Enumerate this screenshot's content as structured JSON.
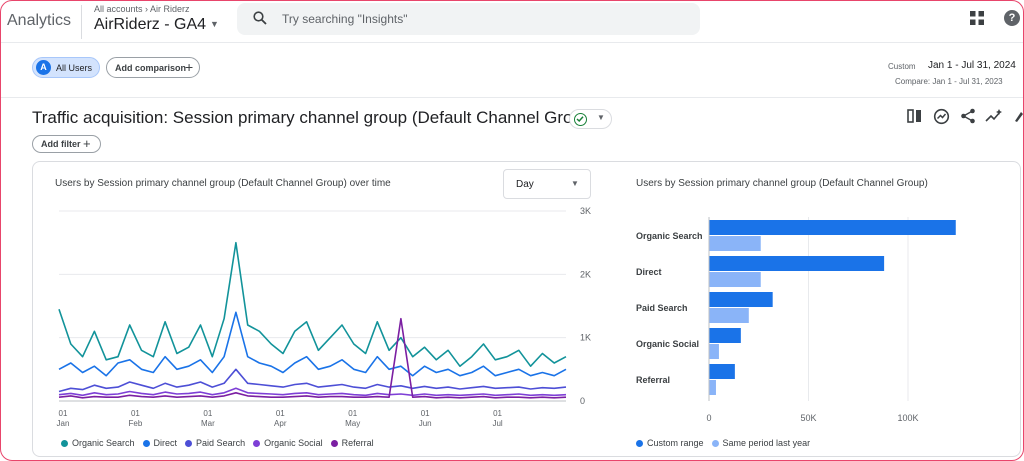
{
  "header": {
    "app_name": "Analytics",
    "breadcrumb": "All accounts › Air Riderz",
    "property": "AirRiderz - GA4",
    "search_placeholder": "Try searching \"Insights\""
  },
  "comparisons": {
    "all_users_avatar": "A",
    "all_users_label": "All Users",
    "add_comparison_label": "Add comparison"
  },
  "date": {
    "custom_label": "Custom",
    "range": "Jan 1 - Jul 31, 2024",
    "compare": "Compare: Jan 1 - Jul 31, 2023"
  },
  "report": {
    "title": "Traffic acquisition: Session primary channel group (Default Channel Group)",
    "add_filter_label": "Add filter",
    "toolbar_icons": [
      "compare-columns-icon",
      "insights-icon",
      "share-icon",
      "trend-icon",
      "edit-icon"
    ]
  },
  "line_card": {
    "title": "Users by Session primary channel group (Default Channel Group) over time",
    "granularity": "Day"
  },
  "bar_card": {
    "title": "Users by Session primary channel group (Default Channel Group)"
  },
  "colors": {
    "organic_search": "#12939a",
    "direct": "#1a73e8",
    "paid_search": "#4d4fd6",
    "organic_social": "#7e3fd6",
    "referral": "#7b1fa2",
    "custom_range": "#1a73e8",
    "last_year": "#8ab4f8"
  },
  "chart_data": [
    {
      "type": "line",
      "x_tick_labels": [
        {
          "day": "01",
          "month": "Jan"
        },
        {
          "day": "01",
          "month": "Feb"
        },
        {
          "day": "01",
          "month": "Mar"
        },
        {
          "day": "01",
          "month": "Apr"
        },
        {
          "day": "01",
          "month": "May"
        },
        {
          "day": "01",
          "month": "Jun"
        },
        {
          "day": "01",
          "month": "Jul"
        }
      ],
      "y_ticks": [
        "3K",
        "2K",
        "1K",
        "0"
      ],
      "ylim": [
        0,
        3000
      ],
      "grid": true,
      "legend_position": "bottom",
      "series": [
        {
          "name": "Organic Search",
          "values": [
            1450,
            900,
            700,
            1100,
            650,
            700,
            1200,
            800,
            700,
            1250,
            750,
            850,
            1200,
            700,
            1300,
            2500,
            1200,
            1100,
            900,
            750,
            1100,
            1250,
            800,
            1000,
            1200,
            900,
            750,
            1250,
            800,
            1000,
            700,
            850,
            650,
            800,
            550,
            700,
            900,
            650,
            700,
            800,
            550,
            750,
            600,
            700
          ]
        },
        {
          "name": "Direct",
          "values": [
            500,
            600,
            450,
            550,
            400,
            600,
            650,
            500,
            450,
            700,
            500,
            550,
            650,
            450,
            700,
            1400,
            700,
            600,
            550,
            450,
            600,
            700,
            500,
            550,
            650,
            500,
            450,
            700,
            500,
            550,
            400,
            550,
            450,
            500,
            400,
            450,
            550,
            400,
            450,
            500,
            400,
            450,
            400,
            500
          ]
        },
        {
          "name": "Paid Search",
          "values": [
            150,
            200,
            180,
            250,
            200,
            220,
            300,
            250,
            200,
            280,
            220,
            250,
            300,
            220,
            280,
            500,
            280,
            260,
            240,
            220,
            260,
            280,
            220,
            240,
            260,
            220,
            200,
            260,
            220,
            240,
            200,
            230,
            200,
            220,
            190,
            210,
            230,
            200,
            210,
            220,
            190,
            210,
            200,
            220
          ]
        },
        {
          "name": "Organic Social",
          "values": [
            100,
            120,
            90,
            130,
            100,
            110,
            150,
            120,
            100,
            140,
            110,
            120,
            140,
            100,
            130,
            200,
            130,
            120,
            110,
            100,
            120,
            130,
            100,
            110,
            120,
            100,
            90,
            120,
            100,
            110,
            90,
            110,
            90,
            100,
            90,
            100,
            110,
            90,
            100,
            110,
            90,
            100,
            90,
            100
          ]
        },
        {
          "name": "Referral",
          "values": [
            60,
            80,
            50,
            70,
            60,
            60,
            90,
            70,
            60,
            80,
            60,
            70,
            80,
            60,
            80,
            130,
            80,
            70,
            60,
            60,
            70,
            80,
            60,
            70,
            70,
            60,
            60,
            70,
            60,
            1300,
            60,
            70,
            50,
            60,
            50,
            60,
            70,
            50,
            60,
            60,
            50,
            60,
            50,
            60
          ]
        }
      ]
    },
    {
      "type": "bar",
      "orientation": "horizontal",
      "categories": [
        "Organic Search",
        "Direct",
        "Paid Search",
        "Organic Social",
        "Referral"
      ],
      "x_ticks": [
        "0",
        "50K",
        "100K"
      ],
      "xlim": [
        0,
        120000
      ],
      "grid": true,
      "legend_position": "bottom",
      "series": [
        {
          "name": "Custom range",
          "values": [
            124000,
            88000,
            32000,
            16000,
            13000
          ]
        },
        {
          "name": "Same period last year",
          "values": [
            26000,
            26000,
            20000,
            5000,
            3500
          ]
        }
      ]
    }
  ]
}
